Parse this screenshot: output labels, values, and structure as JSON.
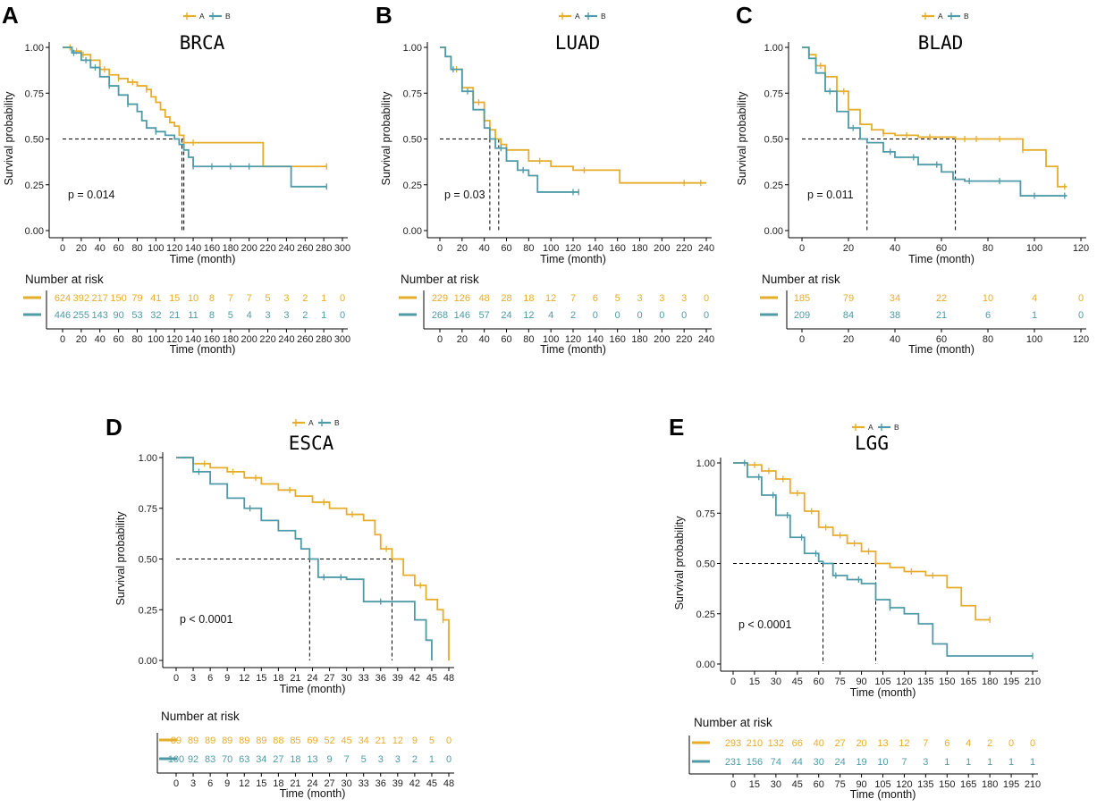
{
  "figure": {
    "legend": {
      "a": "A",
      "b": "B"
    },
    "y_axis_label": "Survival probability",
    "risk_table_title": "Number at risk"
  },
  "colors": {
    "A": "#e6ad2a",
    "B": "#4f9aa7"
  },
  "chart_data": [
    {
      "panel": "A",
      "title": "BRCA",
      "type": "line",
      "subtype": "kaplan-meier",
      "xlabel": "Time (month)",
      "ylabel": "Survival probability",
      "xlim": [
        0,
        300
      ],
      "ylim": [
        0,
        1
      ],
      "x_ticks": [
        0,
        20,
        40,
        60,
        80,
        100,
        120,
        140,
        160,
        180,
        200,
        220,
        240,
        260,
        280,
        300
      ],
      "x_tick_labels": [
        "0",
        "20",
        "40",
        "60",
        "80",
        "100",
        "120",
        "140",
        "160",
        "180",
        "200",
        "220",
        "240",
        "260",
        "280",
        "300"
      ],
      "y_ticks": [
        0,
        0.25,
        0.5,
        0.75,
        1.0
      ],
      "y_tick_labels": [
        "0.00",
        "0.25",
        "0.50",
        "0.75",
        "1.00"
      ],
      "pvalue": "p = 0.014",
      "median_lines": {
        "y": 0.5,
        "medians": [
          128,
          130
        ]
      },
      "series": [
        {
          "name": "A",
          "x": [
            0,
            10,
            20,
            30,
            40,
            50,
            60,
            70,
            80,
            90,
            95,
            100,
            105,
            110,
            115,
            120,
            125,
            130,
            140,
            150,
            170,
            190,
            212,
            215,
            240,
            270,
            283
          ],
          "y": [
            1,
            0.98,
            0.96,
            0.93,
            0.88,
            0.85,
            0.83,
            0.81,
            0.79,
            0.77,
            0.73,
            0.7,
            0.66,
            0.62,
            0.59,
            0.57,
            0.52,
            0.48,
            0.48,
            0.48,
            0.48,
            0.48,
            0.48,
            0.35,
            0.35,
            0.35,
            0.35
          ],
          "censor_x": [
            8,
            15,
            22,
            30,
            45,
            60,
            75,
            90,
            130,
            140,
            283
          ]
        },
        {
          "name": "B",
          "x": [
            0,
            10,
            20,
            30,
            40,
            50,
            60,
            70,
            80,
            85,
            90,
            100,
            110,
            120,
            125,
            130,
            135,
            140,
            160,
            180,
            200,
            240,
            245,
            260,
            283
          ],
          "y": [
            1,
            0.97,
            0.93,
            0.89,
            0.84,
            0.79,
            0.74,
            0.69,
            0.65,
            0.6,
            0.56,
            0.54,
            0.52,
            0.5,
            0.47,
            0.44,
            0.4,
            0.35,
            0.35,
            0.35,
            0.35,
            0.35,
            0.24,
            0.24,
            0.24
          ],
          "censor_x": [
            12,
            25,
            35,
            50,
            70,
            100,
            140,
            160,
            180,
            200,
            283
          ]
        }
      ],
      "risk_table": {
        "times": [
          0,
          20,
          40,
          60,
          80,
          100,
          120,
          140,
          160,
          180,
          200,
          220,
          240,
          260,
          280,
          300
        ],
        "A": [
          "624",
          "392",
          "217",
          "150",
          "79",
          "41",
          "15",
          "10",
          "8",
          "7",
          "7",
          "5",
          "3",
          "2",
          "1",
          "0"
        ],
        "B": [
          "446",
          "255",
          "143",
          "90",
          "53",
          "32",
          "21",
          "11",
          "8",
          "5",
          "4",
          "3",
          "3",
          "2",
          "1",
          "0"
        ],
        "xlabel": "Time (month)"
      }
    },
    {
      "panel": "B",
      "title": "LUAD",
      "type": "line",
      "subtype": "kaplan-meier",
      "xlabel": "Time (month)",
      "ylabel": "Survival probability",
      "xlim": [
        0,
        240
      ],
      "ylim": [
        0,
        1
      ],
      "x_ticks": [
        0,
        20,
        40,
        60,
        80,
        100,
        120,
        140,
        160,
        180,
        200,
        220,
        240
      ],
      "x_tick_labels": [
        "0",
        "20",
        "40",
        "60",
        "80",
        "100",
        "120",
        "140",
        "160",
        "180",
        "200",
        "220",
        "240"
      ],
      "y_ticks": [
        0,
        0.25,
        0.5,
        0.75,
        1.0
      ],
      "y_tick_labels": [
        "0.00",
        "0.25",
        "0.50",
        "0.75",
        "1.00"
      ],
      "pvalue": "p = 0.03",
      "median_lines": {
        "y": 0.5,
        "medians": [
          45,
          53
        ]
      },
      "series": [
        {
          "name": "A",
          "x": [
            0,
            5,
            10,
            20,
            30,
            40,
            45,
            50,
            55,
            60,
            80,
            100,
            120,
            160,
            162,
            200,
            240
          ],
          "y": [
            1,
            0.95,
            0.88,
            0.78,
            0.7,
            0.6,
            0.55,
            0.5,
            0.47,
            0.44,
            0.38,
            0.35,
            0.33,
            0.33,
            0.26,
            0.26,
            0.26
          ],
          "censor_x": [
            15,
            35,
            60,
            90,
            130,
            220,
            235
          ]
        },
        {
          "name": "B",
          "x": [
            0,
            5,
            10,
            20,
            30,
            40,
            45,
            50,
            60,
            70,
            80,
            88,
            100,
            110,
            125
          ],
          "y": [
            1,
            0.95,
            0.88,
            0.76,
            0.66,
            0.56,
            0.5,
            0.45,
            0.38,
            0.33,
            0.3,
            0.21,
            0.21,
            0.21,
            0.21
          ],
          "censor_x": [
            12,
            25,
            55,
            75,
            120,
            125
          ]
        }
      ],
      "risk_table": {
        "times": [
          0,
          20,
          40,
          60,
          80,
          100,
          120,
          140,
          160,
          180,
          200,
          220,
          240
        ],
        "A": [
          "229",
          "126",
          "48",
          "28",
          "18",
          "12",
          "7",
          "6",
          "5",
          "3",
          "3",
          "3",
          "0"
        ],
        "B": [
          "268",
          "146",
          "57",
          "24",
          "12",
          "4",
          "2",
          "0",
          "0",
          "0",
          "0",
          "0",
          "0"
        ],
        "xlabel": "Time (month)"
      }
    },
    {
      "panel": "C",
      "title": "BLAD",
      "type": "line",
      "subtype": "kaplan-meier",
      "xlabel": "Time (month)",
      "ylabel": "Survival probability",
      "xlim": [
        0,
        120
      ],
      "ylim": [
        0,
        1
      ],
      "x_ticks": [
        0,
        20,
        40,
        60,
        80,
        100,
        120
      ],
      "x_tick_labels": [
        "0",
        "20",
        "40",
        "60",
        "80",
        "100",
        "120"
      ],
      "y_ticks": [
        0,
        0.25,
        0.5,
        0.75,
        1.0
      ],
      "y_tick_labels": [
        "0.00",
        "0.25",
        "0.50",
        "0.75",
        "1.00"
      ],
      "pvalue": "p = 0.011",
      "median_lines": {
        "y": 0.5,
        "medians": [
          28,
          66
        ]
      },
      "series": [
        {
          "name": "A",
          "x": [
            0,
            3,
            6,
            10,
            15,
            20,
            25,
            30,
            35,
            40,
            50,
            60,
            66,
            80,
            95,
            97,
            105,
            110,
            114
          ],
          "y": [
            1,
            0.96,
            0.9,
            0.84,
            0.76,
            0.66,
            0.58,
            0.55,
            0.53,
            0.52,
            0.51,
            0.51,
            0.5,
            0.5,
            0.44,
            0.44,
            0.35,
            0.24,
            0.24
          ],
          "censor_x": [
            8,
            18,
            35,
            45,
            55,
            70,
            75,
            85,
            95,
            113
          ]
        },
        {
          "name": "B",
          "x": [
            0,
            3,
            6,
            10,
            15,
            20,
            25,
            28,
            35,
            40,
            50,
            60,
            65,
            70,
            80,
            90,
            94,
            100,
            114
          ],
          "y": [
            1,
            0.94,
            0.86,
            0.76,
            0.65,
            0.56,
            0.5,
            0.48,
            0.43,
            0.4,
            0.36,
            0.32,
            0.28,
            0.27,
            0.27,
            0.27,
            0.19,
            0.19,
            0.19
          ],
          "censor_x": [
            12,
            22,
            38,
            48,
            58,
            72,
            85,
            100,
            113
          ]
        }
      ],
      "risk_table": {
        "times": [
          0,
          20,
          40,
          60,
          80,
          100,
          120
        ],
        "A": [
          "185",
          "79",
          "34",
          "22",
          "10",
          "4",
          "0"
        ],
        "B": [
          "209",
          "84",
          "38",
          "21",
          "6",
          "1",
          "0"
        ],
        "xlabel": "Time (month)"
      }
    },
    {
      "panel": "D",
      "title": "ESCA",
      "type": "line",
      "subtype": "kaplan-meier",
      "xlabel": "Time (month)",
      "ylabel": "Survival probability",
      "xlim": [
        0,
        48
      ],
      "ylim": [
        0,
        1
      ],
      "x_ticks": [
        0,
        3,
        6,
        9,
        12,
        15,
        18,
        21,
        24,
        27,
        30,
        33,
        36,
        39,
        42,
        45,
        48
      ],
      "x_tick_labels": [
        "0",
        "3",
        "6",
        "9",
        "12",
        "15",
        "18",
        "21",
        "24",
        "27",
        "30",
        "33",
        "36",
        "39",
        "42",
        "45",
        "48"
      ],
      "y_ticks": [
        0,
        0.25,
        0.5,
        0.75,
        1.0
      ],
      "y_tick_labels": [
        "0.00",
        "0.25",
        "0.50",
        "0.75",
        "1.00"
      ],
      "pvalue": "p < 0.0001",
      "median_lines": {
        "y": 0.5,
        "medians": [
          23.5,
          38
        ]
      },
      "series": [
        {
          "name": "A",
          "x": [
            0,
            3,
            6,
            9,
            12,
            15,
            18,
            21,
            24,
            27,
            30,
            33,
            35,
            36,
            38,
            40,
            42,
            44,
            46,
            47,
            48
          ],
          "y": [
            1,
            0.97,
            0.95,
            0.93,
            0.9,
            0.87,
            0.84,
            0.81,
            0.78,
            0.75,
            0.72,
            0.69,
            0.62,
            0.55,
            0.5,
            0.42,
            0.37,
            0.3,
            0.25,
            0.2,
            0
          ],
          "censor_x": [
            5,
            10,
            14,
            20,
            26,
            31,
            37,
            43,
            47
          ]
        },
        {
          "name": "B",
          "x": [
            0,
            3,
            6,
            9,
            12,
            15,
            18,
            21,
            22,
            23.5,
            25,
            30,
            33,
            38,
            42,
            44,
            45
          ],
          "y": [
            1,
            0.93,
            0.87,
            0.8,
            0.75,
            0.69,
            0.64,
            0.6,
            0.55,
            0.5,
            0.41,
            0.4,
            0.29,
            0.29,
            0.2,
            0.1,
            0
          ],
          "censor_x": [
            4,
            13,
            26,
            29,
            36
          ]
        }
      ],
      "risk_table": {
        "times": [
          0,
          3,
          6,
          9,
          12,
          15,
          18,
          21,
          24,
          27,
          30,
          33,
          36,
          39,
          42,
          45,
          48
        ],
        "A": [
          "89",
          "89",
          "89",
          "89",
          "89",
          "89",
          "88",
          "85",
          "69",
          "52",
          "45",
          "34",
          "21",
          "12",
          "9",
          "5",
          "0"
        ],
        "B": [
          "100",
          "92",
          "83",
          "70",
          "63",
          "34",
          "27",
          "18",
          "13",
          "9",
          "7",
          "5",
          "3",
          "3",
          "2",
          "1",
          "0"
        ],
        "xlabel": "Time (month)"
      }
    },
    {
      "panel": "E",
      "title": "LGG",
      "type": "line",
      "subtype": "kaplan-meier",
      "xlabel": "Time (month)",
      "ylabel": "Survival probability",
      "xlim": [
        0,
        210
      ],
      "ylim": [
        0,
        1
      ],
      "x_ticks": [
        0,
        15,
        30,
        45,
        60,
        75,
        90,
        105,
        120,
        135,
        150,
        165,
        180,
        195,
        210
      ],
      "x_tick_labels": [
        "0",
        "15",
        "30",
        "45",
        "60",
        "75",
        "90",
        "105",
        "120",
        "135",
        "150",
        "165",
        "180",
        "195",
        "210"
      ],
      "y_ticks": [
        0,
        0.25,
        0.5,
        0.75,
        1.0
      ],
      "y_tick_labels": [
        "0.00",
        "0.25",
        "0.50",
        "0.75",
        "1.00"
      ],
      "pvalue": "p < 0.0001",
      "median_lines": {
        "y": 0.5,
        "medians": [
          63,
          100
        ]
      },
      "series": [
        {
          "name": "A",
          "x": [
            0,
            10,
            20,
            30,
            40,
            50,
            60,
            70,
            80,
            90,
            100,
            110,
            120,
            135,
            150,
            160,
            170,
            180
          ],
          "y": [
            1,
            0.99,
            0.96,
            0.92,
            0.85,
            0.76,
            0.68,
            0.64,
            0.6,
            0.56,
            0.5,
            0.48,
            0.46,
            0.44,
            0.38,
            0.29,
            0.22,
            0.22
          ],
          "censor_x": [
            15,
            25,
            35,
            45,
            55,
            65,
            75,
            85,
            95,
            125,
            140,
            180
          ]
        },
        {
          "name": "B",
          "x": [
            0,
            10,
            20,
            30,
            40,
            50,
            60,
            63,
            70,
            80,
            90,
            100,
            110,
            120,
            130,
            140,
            150,
            160,
            180,
            210
          ],
          "y": [
            1,
            0.93,
            0.84,
            0.74,
            0.63,
            0.55,
            0.51,
            0.5,
            0.44,
            0.42,
            0.4,
            0.32,
            0.28,
            0.25,
            0.2,
            0.1,
            0.04,
            0.04,
            0.04,
            0.04
          ],
          "censor_x": [
            8,
            18,
            28,
            38,
            48,
            58,
            72,
            88,
            110,
            210
          ]
        }
      ],
      "risk_table": {
        "times": [
          0,
          15,
          30,
          45,
          60,
          75,
          90,
          105,
          120,
          135,
          150,
          165,
          180,
          195,
          210
        ],
        "A": [
          "293",
          "210",
          "132",
          "66",
          "40",
          "27",
          "20",
          "13",
          "12",
          "7",
          "6",
          "4",
          "2",
          "0",
          "0"
        ],
        "B": [
          "231",
          "156",
          "74",
          "44",
          "30",
          "24",
          "19",
          "10",
          "7",
          "3",
          "1",
          "1",
          "1",
          "1",
          "1"
        ],
        "xlabel": "Time (month)"
      }
    }
  ]
}
